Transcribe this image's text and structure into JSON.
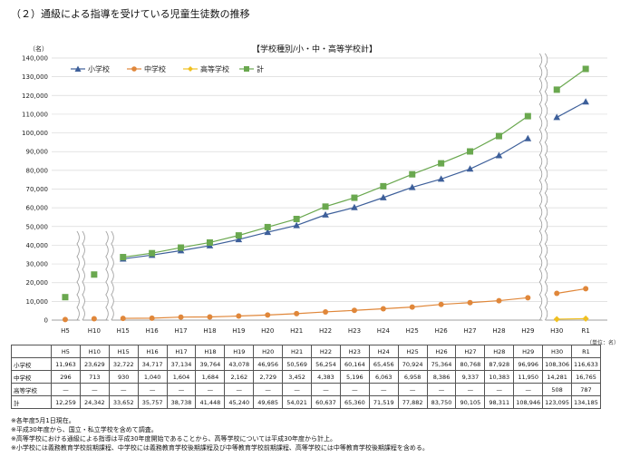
{
  "heading": "（２）通級による指導を受けている児童生徒数の推移",
  "unit_note": "（単位：名）",
  "notes": [
    "※各年度5月1日現在。",
    "※平成30年度から、国立・私立学校を含めて調査。",
    "※高等学校における通級による指導は平成30年度開始であることから、高等学校については平成30年度から計上。",
    "※小学校には義務教育学校前期課程、中学校には義務教育学校後期課程及び中等教育学校前期課程、高等学校には中等教育学校後期課程を含める。"
  ],
  "chart_data": {
    "type": "line",
    "title": "【学校種別/小・中・高等学校計】",
    "ylabel": "（名）",
    "ylim": [
      0,
      140000
    ],
    "yticks": [
      "0",
      "10,000",
      "20,000",
      "30,000",
      "40,000",
      "50,000",
      "60,000",
      "70,000",
      "80,000",
      "90,000",
      "100,000",
      "110,000",
      "120,000",
      "130,000",
      "140,000"
    ],
    "grid": true,
    "legend": "top-left",
    "categories": [
      "H5",
      "H10",
      "H15",
      "H16",
      "H17",
      "H18",
      "H19",
      "H20",
      "H21",
      "H22",
      "H23",
      "H24",
      "H25",
      "H26",
      "H27",
      "H28",
      "H29",
      "H30",
      "R1"
    ],
    "axis_breaks_after": [
      "H5",
      "H10",
      "H29"
    ],
    "series": [
      {
        "name": "小学校",
        "color": "#3d5f9a",
        "marker": "triangle",
        "values": [
          null,
          null,
          32722,
          34717,
          37134,
          39764,
          43078,
          46956,
          50569,
          56254,
          60164,
          65456,
          70924,
          75364,
          80768,
          87928,
          96996,
          108306,
          116633
        ],
        "labels": [
          "11,963",
          "23,629",
          "32,722",
          "34,717",
          "37,134",
          "39,764",
          "43,078",
          "46,956",
          "50,569",
          "56,254",
          "60,164",
          "65,456",
          "70,924",
          "75,364",
          "80,768",
          "87,928",
          "96,996",
          "108,306",
          "116,633"
        ]
      },
      {
        "name": "中学校",
        "color": "#e0873a",
        "marker": "circle",
        "values": [
          296,
          713,
          930,
          1040,
          1604,
          1684,
          2162,
          2729,
          3452,
          4383,
          5196,
          6063,
          6958,
          8386,
          9337,
          10383,
          11950,
          14281,
          16765
        ],
        "labels": [
          "296",
          "713",
          "930",
          "1,040",
          "1,604",
          "1,684",
          "2,162",
          "2,729",
          "3,452",
          "4,383",
          "5,196",
          "6,063",
          "6,958",
          "8,386",
          "9,337",
          "10,383",
          "11,950",
          "14,281",
          "16,765"
        ]
      },
      {
        "name": "高等学校",
        "color": "#f0c020",
        "marker": "diamond",
        "values": [
          null,
          null,
          null,
          null,
          null,
          null,
          null,
          null,
          null,
          null,
          null,
          null,
          null,
          null,
          null,
          null,
          null,
          508,
          787
        ],
        "labels": [
          "—",
          "—",
          "—",
          "—",
          "—",
          "—",
          "—",
          "—",
          "—",
          "—",
          "—",
          "—",
          "—",
          "—",
          "—",
          "—",
          "—",
          "508",
          "787"
        ]
      },
      {
        "name": "計",
        "color": "#6aa84f",
        "marker": "square",
        "values": [
          12259,
          24342,
          33652,
          35757,
          38738,
          41448,
          45240,
          49685,
          54021,
          60637,
          65360,
          71519,
          77882,
          83750,
          90105,
          98311,
          108946,
          123095,
          134185
        ],
        "labels": [
          "12,259",
          "24,342",
          "33,652",
          "35,757",
          "38,738",
          "41,448",
          "45,240",
          "49,685",
          "54,021",
          "60,637",
          "65,360",
          "71,519",
          "77,882",
          "83,750",
          "90,105",
          "98,311",
          "108,946",
          "123,095",
          "134,185"
        ]
      }
    ]
  }
}
